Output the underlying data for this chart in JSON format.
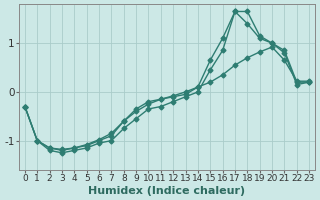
{
  "xlabel": "Humidex (Indice chaleur)",
  "bg_color": "#cce8e6",
  "grid_color": "#aaccca",
  "line_color": "#2e7d72",
  "marker": "D",
  "markersize": 2.5,
  "linewidth": 1.0,
  "xlim": [
    -0.5,
    23.5
  ],
  "ylim": [
    -1.6,
    1.8
  ],
  "yticks": [
    -1,
    0,
    1
  ],
  "xticks": [
    0,
    1,
    2,
    3,
    4,
    5,
    6,
    7,
    8,
    9,
    10,
    11,
    12,
    13,
    14,
    15,
    16,
    17,
    18,
    19,
    20,
    21,
    22,
    23
  ],
  "line1_y": [
    -0.3,
    -1.0,
    -1.15,
    -1.2,
    -1.15,
    -1.1,
    -1.0,
    -0.9,
    -0.6,
    -0.35,
    -0.2,
    -0.15,
    -0.1,
    -0.05,
    0.1,
    0.65,
    1.1,
    1.65,
    1.4,
    1.1,
    1.0,
    0.85,
    0.2,
    0.2
  ],
  "line2_y": [
    -0.3,
    -1.0,
    -1.2,
    -1.25,
    -1.2,
    -1.15,
    -1.05,
    -1.0,
    -0.75,
    -0.55,
    -0.35,
    -0.3,
    -0.2,
    -0.1,
    0.0,
    0.45,
    0.85,
    1.65,
    1.65,
    1.15,
    1.0,
    0.8,
    0.15,
    0.2
  ],
  "line3_y": [
    -0.3,
    -1.0,
    -1.15,
    -1.18,
    -1.15,
    -1.08,
    -0.98,
    -0.85,
    -0.6,
    -0.4,
    -0.25,
    -0.15,
    -0.08,
    0.0,
    0.1,
    0.2,
    0.35,
    0.55,
    0.7,
    0.82,
    0.92,
    0.65,
    0.22,
    0.22
  ],
  "tick_fontsize": 6.5,
  "label_fontsize": 8
}
